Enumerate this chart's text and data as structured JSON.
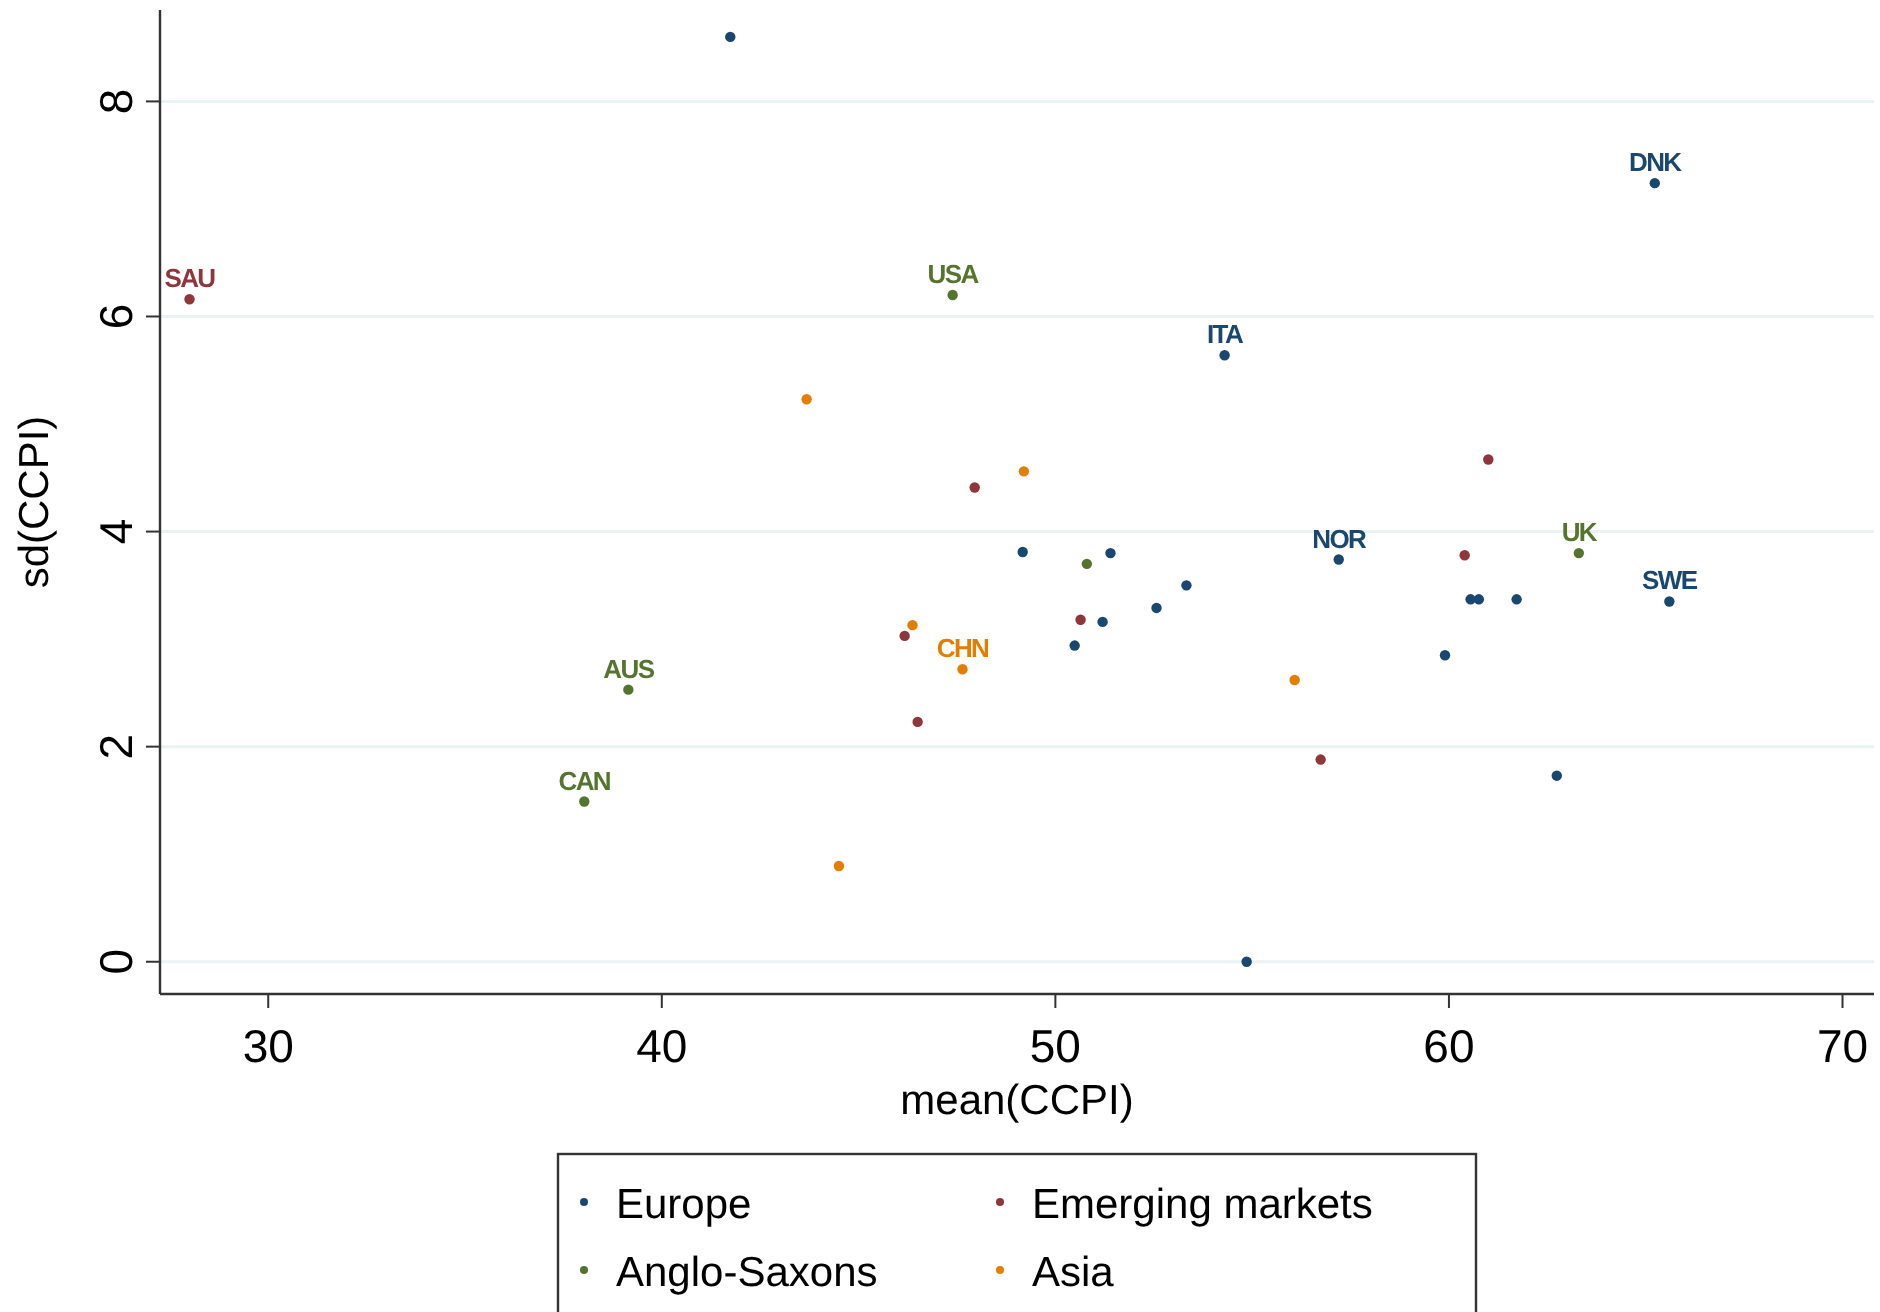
{
  "chart_data": {
    "type": "scatter",
    "xlabel": "mean(CCPI)",
    "ylabel": "sd(CCPI)",
    "xlim": [
      27.25,
      70.8
    ],
    "ylim": [
      -0.3,
      8.85
    ],
    "xticks": [
      30,
      40,
      50,
      60,
      70
    ],
    "yticks": [
      0,
      2,
      4,
      6,
      8
    ],
    "grid": "y",
    "legend": "bottom",
    "marker": "circle",
    "series": [
      {
        "name": "Europe",
        "color": "#1a476f",
        "x": [
          41.74,
          65.23,
          54.3,
          49.17,
          51.4,
          57.2,
          53.33,
          52.57,
          51.2,
          50.49,
          60.55,
          60.76,
          61.72,
          65.6,
          59.9,
          62.74,
          54.86
        ],
        "values": [
          8.6,
          7.24,
          5.64,
          3.81,
          3.8,
          3.74,
          3.5,
          3.29,
          3.16,
          2.94,
          3.37,
          3.37,
          3.37,
          3.35,
          2.85,
          1.73,
          0.0
        ]
      },
      {
        "name": "Emerging markets",
        "color": "#90353b",
        "x": [
          28.0,
          47.95,
          61.0,
          60.4,
          50.64,
          46.17,
          46.5,
          56.74
        ],
        "values": [
          6.16,
          4.41,
          4.67,
          3.78,
          3.18,
          3.03,
          2.23,
          1.88
        ]
      },
      {
        "name": "Anglo-Saxons",
        "color": "#55752f",
        "x": [
          47.39,
          39.15,
          38.03,
          63.3,
          50.8
        ],
        "values": [
          6.2,
          2.53,
          1.49,
          3.8,
          3.7
        ]
      },
      {
        "name": "Asia",
        "color": "#e37e00",
        "x": [
          43.68,
          49.2,
          46.37,
          47.64,
          56.08,
          44.5
        ],
        "values": [
          5.23,
          4.56,
          3.13,
          2.72,
          2.62,
          0.89
        ]
      }
    ],
    "annotations": [
      {
        "text": "DNK",
        "x": 65.23,
        "y": 7.24
      },
      {
        "text": "ITA",
        "x": 54.3,
        "y": 5.64
      },
      {
        "text": "NOR",
        "x": 57.2,
        "y": 3.74
      },
      {
        "text": "SWE",
        "x": 65.6,
        "y": 3.35
      },
      {
        "text": "SAU",
        "x": 28.0,
        "y": 6.16
      },
      {
        "text": "USA",
        "x": 47.39,
        "y": 6.2
      },
      {
        "text": "AUS",
        "x": 39.15,
        "y": 2.53
      },
      {
        "text": "CAN",
        "x": 38.03,
        "y": 1.49
      },
      {
        "text": "UK",
        "x": 63.3,
        "y": 3.8
      },
      {
        "text": "CHN",
        "x": 47.64,
        "y": 2.72
      }
    ]
  }
}
